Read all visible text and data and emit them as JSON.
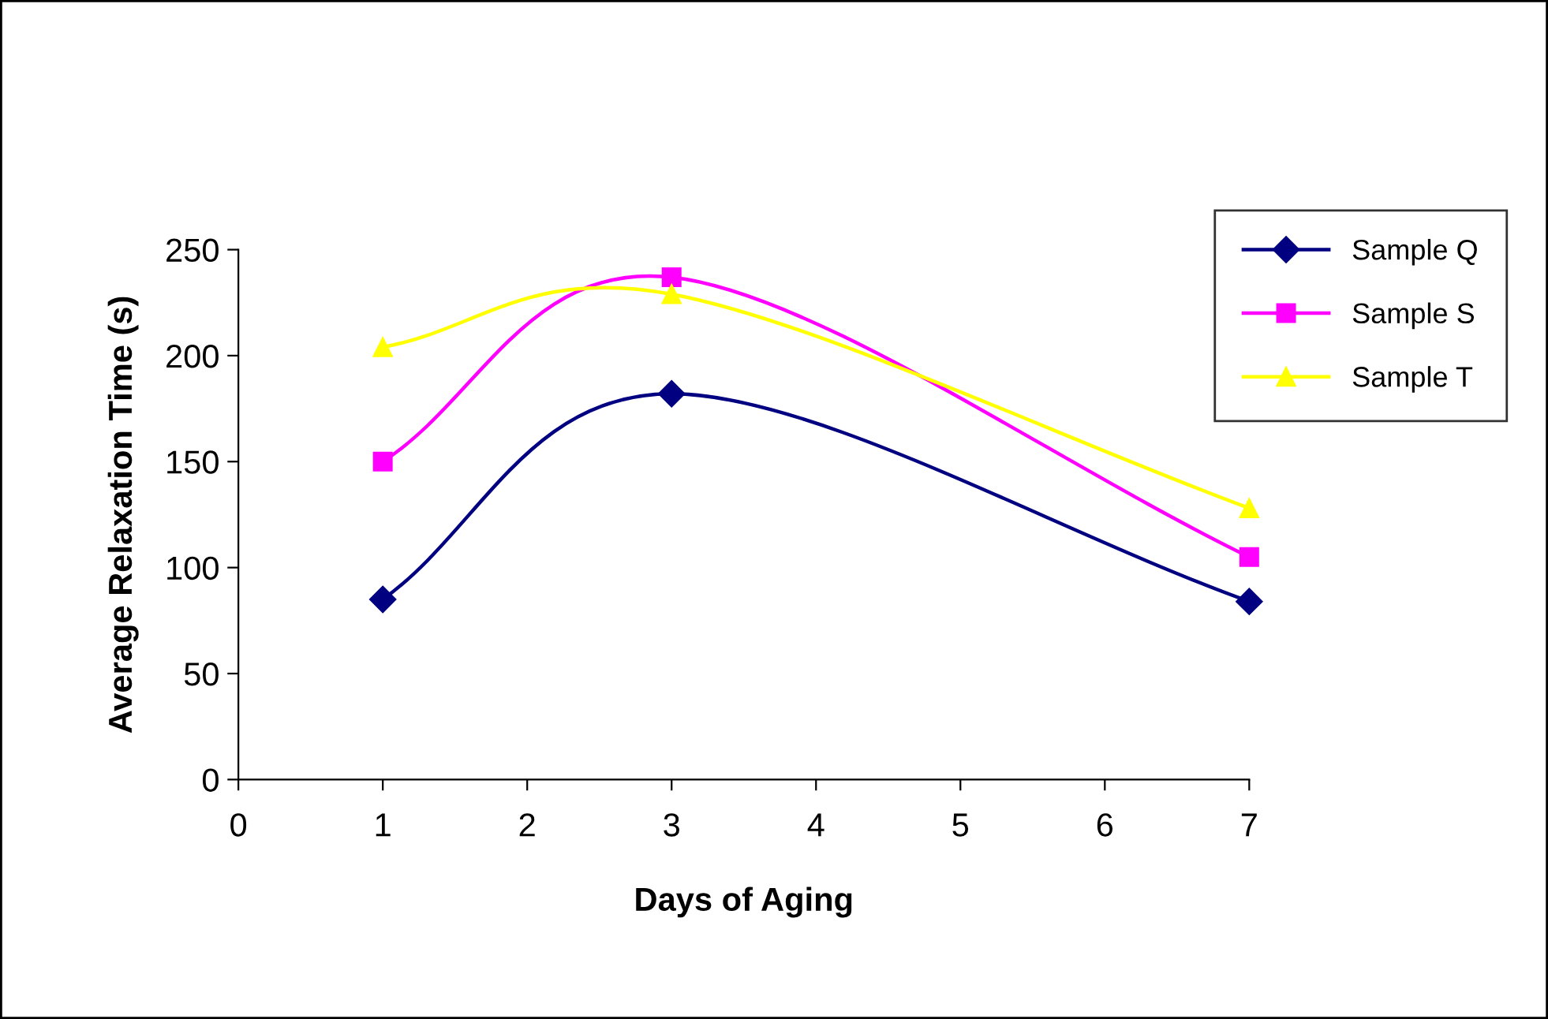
{
  "chart_data": {
    "type": "line",
    "xlabel": "Days of Aging",
    "ylabel": "Average Relaxation Time (s)",
    "x": [
      1,
      3,
      7
    ],
    "series": [
      {
        "name": "Sample Q",
        "color": "#000080",
        "marker": "diamond",
        "values": [
          85,
          182,
          84
        ]
      },
      {
        "name": "Sample S",
        "color": "#ff00ff",
        "marker": "square",
        "values": [
          150,
          237,
          105
        ]
      },
      {
        "name": "Sample T",
        "color": "#ffff00",
        "marker": "triangle",
        "values": [
          204,
          229,
          128
        ]
      }
    ],
    "xlim": [
      0,
      7
    ],
    "xticks": [
      0,
      1,
      2,
      3,
      4,
      5,
      6,
      7
    ],
    "ylim": [
      0,
      250
    ],
    "yticks": [
      0,
      50,
      100,
      150,
      200,
      250
    ],
    "grid": false,
    "legend": "right",
    "line_style": "solid"
  }
}
